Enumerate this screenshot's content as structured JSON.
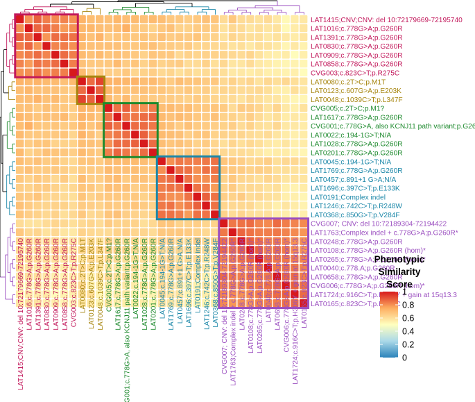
{
  "chart_data": {
    "type": "heatmap",
    "title": "",
    "legend": {
      "title_lines": [
        "Phenotypic",
        "Similarity",
        "Score"
      ],
      "ticks": [
        "1",
        "0.8",
        "0.6",
        "0.4",
        "0.2",
        "0"
      ],
      "range": [
        0,
        1
      ],
      "placement": "right"
    },
    "colors": {
      "low": "#2b83ba",
      "mid_low": "#abd9e9",
      "mid": "#ffffbf",
      "mid_high": "#fdae61",
      "high": "#d7191c"
    },
    "labels": [
      "LAT1415;CNV;CNV: del 10:72179669-72195740",
      "LAT1016;c.778G>A;p.G260R",
      "LAT1391;c.778G>A;p.G260R",
      "LAT0830;c.778G>A;p.G260R",
      "LAT0909;c.778G>A;p.G260R",
      "LAT0858;c.778G>A;p.G260R",
      "CVG003;c.823C>T;p.R275C",
      "LAT0080;c.2T>C;p.M1T",
      "LAT0123;c.607G>A;p.E203K",
      "LAT0048;c.1039C>T;p.L347F",
      "CVG005;c.2T>C;p.M1?",
      "LAT1617;c.778G>A;p.G260R",
      "CVG001;c.778G>A, also KCNJ11 path variant;p.G260R",
      "LAT0022;c.194-1G>T;N/A",
      "LAT1028;c.778G>A;p.G260R",
      "LAT0201;c.778G>A;p.G260R",
      "LAT0045;c.194-1G>T;N/A",
      "LAT1769;c.778G>A;p.G260R",
      "LAT0457;c.891+1 G>A;N/A",
      "LAT1696;c.397C>T;p.E133K",
      "LAT0191;Complex indel",
      "LAT1246;c.742C>T;p.R248W",
      "LAT0368;c.850G>T;p.V284F",
      "CVG007; CNV: del 10:72189304-72194422",
      "LAT1763;Complex indel + c.778G>A;p.G260R*",
      "LAT0248;c.778G>A;p.G260R",
      "LAT0108;c.778G>A;p.G260R (hom)*",
      "LAT0265;c.778G>A;p.G260R (hom)*",
      "LAT0040;c.778.A;p.G260R",
      "LAT0658;c.778G>A;p.G260R",
      "CVG006;c.778G>A;p.G260R (hom)*",
      "LAT1724;c.916C>T;p.H306Y + gain at 15q13.3",
      "LAT0165;c.823C>T;p.R275C"
    ],
    "clusters": [
      {
        "name": "cluster-1",
        "start": 0,
        "end": 6,
        "color": "#c2185b"
      },
      {
        "name": "cluster-2",
        "start": 7,
        "end": 9,
        "color": "#a6850e"
      },
      {
        "name": "cluster-3",
        "start": 10,
        "end": 15,
        "color": "#1e8a2e"
      },
      {
        "name": "cluster-4",
        "start": 16,
        "end": 22,
        "color": "#1b87a8"
      },
      {
        "name": "cluster-5",
        "start": 23,
        "end": 32,
        "color": "#9b4fc0"
      }
    ],
    "scores": [
      [
        1.0,
        0.8,
        0.88,
        0.83,
        0.81,
        0.82,
        0.8,
        0.73,
        0.7,
        0.7,
        0.69,
        0.72,
        0.7,
        0.71,
        0.69,
        0.71,
        0.7,
        0.67,
        0.67,
        0.65,
        0.67,
        0.69,
        0.68,
        0.61,
        0.67,
        0.61,
        0.61,
        0.59,
        0.61,
        0.57,
        0.52,
        0.56,
        0.57
      ],
      [
        0.8,
        1.0,
        0.87,
        0.87,
        0.83,
        0.78,
        0.8,
        0.72,
        0.72,
        0.7,
        0.69,
        0.7,
        0.74,
        0.67,
        0.66,
        0.64,
        0.67,
        0.69,
        0.64,
        0.64,
        0.66,
        0.66,
        0.65,
        0.59,
        0.62,
        0.61,
        0.58,
        0.6,
        0.58,
        0.59,
        0.52,
        0.56,
        0.58
      ],
      [
        0.88,
        0.87,
        1.0,
        0.79,
        0.86,
        0.85,
        0.85,
        0.73,
        0.69,
        0.73,
        0.66,
        0.68,
        0.68,
        0.67,
        0.68,
        0.66,
        0.69,
        0.66,
        0.67,
        0.66,
        0.68,
        0.64,
        0.64,
        0.59,
        0.63,
        0.61,
        0.6,
        0.6,
        0.57,
        0.59,
        0.57,
        0.56,
        0.58
      ],
      [
        0.83,
        0.87,
        0.79,
        1.0,
        0.82,
        0.83,
        0.8,
        0.71,
        0.69,
        0.69,
        0.69,
        0.69,
        0.67,
        0.67,
        0.68,
        0.69,
        0.66,
        0.66,
        0.65,
        0.66,
        0.63,
        0.63,
        0.62,
        0.61,
        0.59,
        0.6,
        0.57,
        0.6,
        0.59,
        0.57,
        0.53,
        0.57,
        0.54
      ],
      [
        0.81,
        0.83,
        0.86,
        0.82,
        1.0,
        0.86,
        0.83,
        0.71,
        0.69,
        0.71,
        0.68,
        0.69,
        0.68,
        0.67,
        0.64,
        0.68,
        0.67,
        0.67,
        0.62,
        0.64,
        0.63,
        0.64,
        0.64,
        0.63,
        0.62,
        0.61,
        0.63,
        0.59,
        0.56,
        0.55,
        0.56,
        0.51,
        0.55
      ],
      [
        0.82,
        0.78,
        0.85,
        0.83,
        0.86,
        1.0,
        0.83,
        0.69,
        0.67,
        0.67,
        0.67,
        0.71,
        0.66,
        0.68,
        0.64,
        0.67,
        0.64,
        0.65,
        0.66,
        0.61,
        0.61,
        0.64,
        0.6,
        0.62,
        0.58,
        0.58,
        0.61,
        0.57,
        0.56,
        0.54,
        0.53,
        0.54,
        0.53
      ],
      [
        0.8,
        0.8,
        0.85,
        0.8,
        0.83,
        0.83,
        1.0,
        0.71,
        0.65,
        0.66,
        0.65,
        0.65,
        0.67,
        0.63,
        0.64,
        0.65,
        0.62,
        0.63,
        0.6,
        0.62,
        0.6,
        0.61,
        0.62,
        0.6,
        0.57,
        0.57,
        0.56,
        0.57,
        0.55,
        0.55,
        0.54,
        0.55,
        0.51
      ],
      [
        0.73,
        0.72,
        0.73,
        0.71,
        0.71,
        0.69,
        0.71,
        1.0,
        0.86,
        0.93,
        0.73,
        0.73,
        0.72,
        0.73,
        0.7,
        0.71,
        0.68,
        0.66,
        0.7,
        0.68,
        0.68,
        0.66,
        0.67,
        0.62,
        0.64,
        0.61,
        0.63,
        0.59,
        0.62,
        0.6,
        0.62,
        0.6,
        0.58
      ],
      [
        0.7,
        0.72,
        0.69,
        0.69,
        0.69,
        0.67,
        0.65,
        0.86,
        1.0,
        0.88,
        0.72,
        0.71,
        0.68,
        0.69,
        0.69,
        0.68,
        0.68,
        0.66,
        0.65,
        0.67,
        0.64,
        0.65,
        0.62,
        0.63,
        0.62,
        0.61,
        0.61,
        0.62,
        0.6,
        0.56,
        0.55,
        0.6,
        0.57
      ],
      [
        0.7,
        0.7,
        0.73,
        0.69,
        0.71,
        0.67,
        0.66,
        0.93,
        0.88,
        1.0,
        0.71,
        0.68,
        0.71,
        0.65,
        0.68,
        0.66,
        0.66,
        0.66,
        0.65,
        0.64,
        0.66,
        0.64,
        0.63,
        0.61,
        0.61,
        0.59,
        0.62,
        0.6,
        0.58,
        0.58,
        0.55,
        0.53,
        0.53
      ],
      [
        0.69,
        0.69,
        0.66,
        0.69,
        0.68,
        0.67,
        0.65,
        0.73,
        0.72,
        0.71,
        1.0,
        0.85,
        0.88,
        0.82,
        0.8,
        0.83,
        0.7,
        0.71,
        0.69,
        0.7,
        0.67,
        0.67,
        0.68,
        0.66,
        0.61,
        0.66,
        0.65,
        0.63,
        0.59,
        0.63,
        0.57,
        0.55,
        0.59
      ],
      [
        0.72,
        0.7,
        0.68,
        0.69,
        0.69,
        0.71,
        0.65,
        0.73,
        0.71,
        0.68,
        0.85,
        1.0,
        0.85,
        0.84,
        0.86,
        0.87,
        0.71,
        0.69,
        0.71,
        0.69,
        0.67,
        0.66,
        0.69,
        0.64,
        0.64,
        0.62,
        0.65,
        0.61,
        0.58,
        0.6,
        0.56,
        0.57,
        0.56
      ],
      [
        0.7,
        0.74,
        0.68,
        0.67,
        0.68,
        0.66,
        0.67,
        0.72,
        0.68,
        0.71,
        0.88,
        0.85,
        1.0,
        0.86,
        0.86,
        0.84,
        0.71,
        0.69,
        0.66,
        0.69,
        0.66,
        0.66,
        0.65,
        0.64,
        0.65,
        0.61,
        0.64,
        0.6,
        0.59,
        0.62,
        0.57,
        0.57,
        0.56
      ],
      [
        0.71,
        0.67,
        0.67,
        0.67,
        0.67,
        0.68,
        0.63,
        0.73,
        0.69,
        0.65,
        0.82,
        0.84,
        0.86,
        1.0,
        0.88,
        0.81,
        0.71,
        0.7,
        0.69,
        0.65,
        0.67,
        0.68,
        0.64,
        0.64,
        0.63,
        0.63,
        0.61,
        0.6,
        0.61,
        0.58,
        0.56,
        0.55,
        0.56
      ],
      [
        0.69,
        0.66,
        0.68,
        0.68,
        0.64,
        0.64,
        0.64,
        0.7,
        0.69,
        0.68,
        0.8,
        0.86,
        0.86,
        0.88,
        1.0,
        0.86,
        0.7,
        0.68,
        0.69,
        0.67,
        0.64,
        0.66,
        0.63,
        0.6,
        0.63,
        0.6,
        0.62,
        0.6,
        0.57,
        0.56,
        0.58,
        0.55,
        0.56
      ],
      [
        0.71,
        0.64,
        0.66,
        0.69,
        0.68,
        0.67,
        0.65,
        0.71,
        0.68,
        0.66,
        0.83,
        0.87,
        0.84,
        0.81,
        0.86,
        1.0,
        0.67,
        0.68,
        0.65,
        0.67,
        0.66,
        0.64,
        0.64,
        0.62,
        0.61,
        0.61,
        0.6,
        0.57,
        0.55,
        0.56,
        0.56,
        0.54,
        0.53
      ],
      [
        0.7,
        0.67,
        0.69,
        0.66,
        0.67,
        0.64,
        0.62,
        0.68,
        0.68,
        0.66,
        0.7,
        0.71,
        0.71,
        0.71,
        0.7,
        0.67,
        1.0,
        0.8,
        0.84,
        0.83,
        0.83,
        0.84,
        0.85,
        0.68,
        0.67,
        0.65,
        0.62,
        0.63,
        0.65,
        0.6,
        0.62,
        0.62,
        0.59
      ],
      [
        0.67,
        0.69,
        0.66,
        0.66,
        0.67,
        0.65,
        0.63,
        0.66,
        0.66,
        0.66,
        0.71,
        0.69,
        0.69,
        0.7,
        0.68,
        0.68,
        0.8,
        1.0,
        0.86,
        0.85,
        0.8,
        0.85,
        0.85,
        0.68,
        0.67,
        0.66,
        0.64,
        0.65,
        0.64,
        0.6,
        0.6,
        0.59,
        0.58
      ],
      [
        0.67,
        0.64,
        0.67,
        0.65,
        0.62,
        0.66,
        0.6,
        0.7,
        0.65,
        0.65,
        0.69,
        0.71,
        0.66,
        0.69,
        0.69,
        0.65,
        0.84,
        0.86,
        1.0,
        0.85,
        0.8,
        0.8,
        0.83,
        0.64,
        0.67,
        0.63,
        0.62,
        0.6,
        0.63,
        0.61,
        0.58,
        0.59,
        0.58
      ],
      [
        0.65,
        0.64,
        0.66,
        0.66,
        0.64,
        0.61,
        0.62,
        0.68,
        0.67,
        0.64,
        0.7,
        0.69,
        0.69,
        0.65,
        0.67,
        0.67,
        0.83,
        0.85,
        0.85,
        1.0,
        0.85,
        0.83,
        0.78,
        0.64,
        0.66,
        0.61,
        0.62,
        0.61,
        0.59,
        0.6,
        0.55,
        0.54,
        0.56
      ],
      [
        0.67,
        0.66,
        0.68,
        0.63,
        0.63,
        0.61,
        0.6,
        0.68,
        0.64,
        0.66,
        0.67,
        0.67,
        0.66,
        0.67,
        0.64,
        0.66,
        0.83,
        0.8,
        0.8,
        0.85,
        1.0,
        0.88,
        0.85,
        0.65,
        0.64,
        0.66,
        0.61,
        0.62,
        0.6,
        0.59,
        0.55,
        0.55,
        0.53
      ],
      [
        0.69,
        0.66,
        0.64,
        0.63,
        0.64,
        0.64,
        0.61,
        0.66,
        0.65,
        0.64,
        0.67,
        0.66,
        0.66,
        0.68,
        0.66,
        0.64,
        0.84,
        0.85,
        0.8,
        0.83,
        0.88,
        1.0,
        0.85,
        0.63,
        0.62,
        0.62,
        0.62,
        0.58,
        0.58,
        0.55,
        0.58,
        0.56,
        0.54
      ],
      [
        0.68,
        0.65,
        0.64,
        0.62,
        0.64,
        0.6,
        0.62,
        0.67,
        0.62,
        0.63,
        0.68,
        0.69,
        0.65,
        0.64,
        0.63,
        0.64,
        0.85,
        0.85,
        0.83,
        0.78,
        0.85,
        0.85,
        1.0,
        0.64,
        0.61,
        0.63,
        0.6,
        0.59,
        0.59,
        0.55,
        0.55,
        0.54,
        0.55
      ],
      [
        0.61,
        0.59,
        0.59,
        0.61,
        0.63,
        0.62,
        0.6,
        0.62,
        0.63,
        0.61,
        0.66,
        0.64,
        0.64,
        0.64,
        0.6,
        0.62,
        0.68,
        0.68,
        0.64,
        0.64,
        0.65,
        0.63,
        0.64,
        1.0,
        0.84,
        0.85,
        0.86,
        0.82,
        0.81,
        0.86,
        0.83,
        0.82,
        0.81
      ],
      [
        0.67,
        0.62,
        0.63,
        0.59,
        0.62,
        0.58,
        0.57,
        0.64,
        0.62,
        0.61,
        0.61,
        0.64,
        0.65,
        0.63,
        0.63,
        0.61,
        0.67,
        0.67,
        0.67,
        0.66,
        0.64,
        0.62,
        0.61,
        0.84,
        1.0,
        0.87,
        0.85,
        0.83,
        0.83,
        0.84,
        0.82,
        0.81,
        0.79
      ],
      [
        0.61,
        0.61,
        0.61,
        0.6,
        0.61,
        0.58,
        0.57,
        0.61,
        0.61,
        0.59,
        0.66,
        0.62,
        0.61,
        0.63,
        0.6,
        0.61,
        0.65,
        0.66,
        0.63,
        0.61,
        0.66,
        0.62,
        0.63,
        0.85,
        0.87,
        1.0,
        0.88,
        0.85,
        0.82,
        0.83,
        0.82,
        0.8,
        0.8
      ],
      [
        0.61,
        0.58,
        0.6,
        0.57,
        0.63,
        0.61,
        0.56,
        0.63,
        0.61,
        0.62,
        0.65,
        0.65,
        0.64,
        0.61,
        0.62,
        0.6,
        0.62,
        0.64,
        0.62,
        0.62,
        0.61,
        0.62,
        0.6,
        0.86,
        0.85,
        0.88,
        1.0,
        0.88,
        0.82,
        0.85,
        0.84,
        0.81,
        0.79
      ],
      [
        0.59,
        0.6,
        0.6,
        0.6,
        0.59,
        0.57,
        0.57,
        0.59,
        0.62,
        0.6,
        0.63,
        0.61,
        0.6,
        0.6,
        0.6,
        0.57,
        0.63,
        0.65,
        0.6,
        0.61,
        0.62,
        0.58,
        0.59,
        0.82,
        0.83,
        0.85,
        0.88,
        1.0,
        0.86,
        0.84,
        0.84,
        0.83,
        0.82
      ],
      [
        0.61,
        0.58,
        0.57,
        0.59,
        0.56,
        0.56,
        0.55,
        0.62,
        0.6,
        0.58,
        0.59,
        0.58,
        0.59,
        0.61,
        0.57,
        0.55,
        0.65,
        0.64,
        0.63,
        0.59,
        0.6,
        0.58,
        0.59,
        0.81,
        0.83,
        0.82,
        0.82,
        0.86,
        1.0,
        0.84,
        0.85,
        0.84,
        0.82
      ],
      [
        0.57,
        0.59,
        0.59,
        0.57,
        0.55,
        0.54,
        0.55,
        0.6,
        0.56,
        0.58,
        0.63,
        0.6,
        0.62,
        0.58,
        0.56,
        0.56,
        0.6,
        0.6,
        0.61,
        0.6,
        0.59,
        0.55,
        0.55,
        0.86,
        0.84,
        0.83,
        0.85,
        0.84,
        0.84,
        1.0,
        0.87,
        0.86,
        0.83
      ],
      [
        0.52,
        0.52,
        0.57,
        0.53,
        0.56,
        0.53,
        0.54,
        0.62,
        0.55,
        0.55,
        0.57,
        0.56,
        0.57,
        0.56,
        0.58,
        0.56,
        0.62,
        0.6,
        0.58,
        0.55,
        0.55,
        0.58,
        0.55,
        0.83,
        0.82,
        0.82,
        0.84,
        0.84,
        0.85,
        0.87,
        1.0,
        0.88,
        0.85
      ],
      [
        0.56,
        0.56,
        0.56,
        0.57,
        0.51,
        0.54,
        0.55,
        0.6,
        0.6,
        0.53,
        0.55,
        0.57,
        0.57,
        0.55,
        0.55,
        0.54,
        0.62,
        0.59,
        0.59,
        0.54,
        0.55,
        0.56,
        0.54,
        0.82,
        0.81,
        0.8,
        0.81,
        0.83,
        0.84,
        0.86,
        0.88,
        1.0,
        0.86
      ],
      [
        0.57,
        0.58,
        0.58,
        0.54,
        0.55,
        0.53,
        0.51,
        0.58,
        0.57,
        0.53,
        0.59,
        0.56,
        0.56,
        0.56,
        0.56,
        0.53,
        0.59,
        0.58,
        0.58,
        0.56,
        0.53,
        0.54,
        0.55,
        0.81,
        0.79,
        0.8,
        0.79,
        0.82,
        0.82,
        0.83,
        0.85,
        0.86,
        1.0
      ]
    ]
  }
}
